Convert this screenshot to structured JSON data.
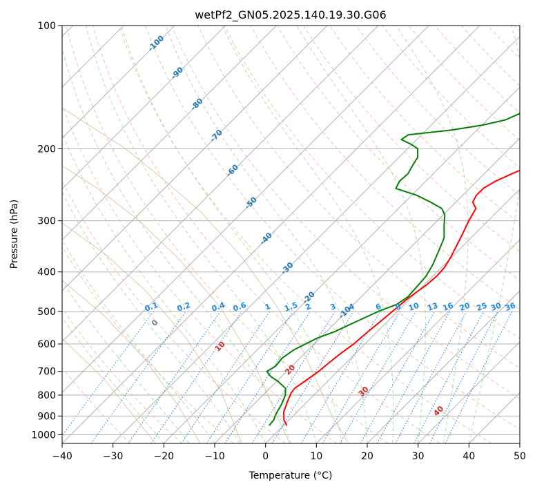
{
  "chart_data": {
    "type": "line",
    "title": "wetPf2_GN05.2025.140.19.30.G06",
    "xlabel": "Temperature (°C)",
    "ylabel": "Pressure (hPa)",
    "xlim": [
      -40,
      50
    ],
    "ylim": [
      1050,
      100
    ],
    "y_scale": "log",
    "grid": true,
    "x_ticks": [
      -40,
      -30,
      -20,
      -10,
      0,
      10,
      20,
      30,
      40,
      50
    ],
    "y_ticks": [
      1000,
      900,
      800,
      700,
      600,
      500,
      400,
      300,
      200,
      100
    ],
    "colors": {
      "temperature": "#ff0000",
      "dewpoint": "#008000",
      "dry_adiabat": "#f4a582",
      "moist_adiabat": "#a6d8a6",
      "mixing_ratio": "#1e88e5",
      "isotherm_label": "#1f77b4",
      "theta_label": "#d62728",
      "grid": "#b0b0b0",
      "isotherm": "#a0a0a0",
      "tan_curve": "#d2b48c"
    },
    "series": [
      {
        "key": "temperature",
        "points": [
          [
            0.7,
            950
          ],
          [
            -1.0,
            920
          ],
          [
            -2.6,
            880
          ],
          [
            -3.9,
            830
          ],
          [
            -4.9,
            790
          ],
          [
            -5.1,
            770
          ],
          [
            -4.5,
            740
          ],
          [
            -3.7,
            700
          ],
          [
            -3.4,
            670
          ],
          [
            -3.0,
            640
          ],
          [
            -2.2,
            600
          ],
          [
            -1.8,
            560
          ],
          [
            -1.4,
            530
          ],
          [
            -1.0,
            500
          ],
          [
            -0.6,
            470
          ],
          [
            -0.1,
            450
          ],
          [
            0.5,
            430
          ],
          [
            0.8,
            410
          ],
          [
            0.6,
            390
          ],
          [
            -0.1,
            370
          ],
          [
            -1.3,
            345
          ],
          [
            -2.6,
            320
          ],
          [
            -3.8,
            300
          ],
          [
            -4.8,
            280
          ],
          [
            -6.7,
            270
          ],
          [
            -7.3,
            260
          ],
          [
            -7.3,
            250
          ],
          [
            -6.3,
            240
          ],
          [
            -4.5,
            230
          ],
          [
            -2.3,
            220
          ],
          [
            0.0,
            210
          ],
          [
            3.2,
            200
          ],
          [
            6.1,
            190
          ],
          [
            8.3,
            180
          ],
          [
            10.2,
            170
          ],
          [
            12.4,
            160
          ],
          [
            14.7,
            150
          ],
          [
            16.3,
            140
          ],
          [
            17.8,
            130
          ],
          [
            19.2,
            120
          ],
          [
            20.6,
            110
          ],
          [
            21.7,
            104
          ],
          [
            23.0,
            100
          ]
        ]
      },
      {
        "key": "dewpoint",
        "points": [
          [
            -2.8,
            950
          ],
          [
            -3.0,
            920
          ],
          [
            -3.5,
            900
          ],
          [
            -3.9,
            880
          ],
          [
            -4.6,
            840
          ],
          [
            -5.6,
            800
          ],
          [
            -6.9,
            770
          ],
          [
            -9.8,
            740
          ],
          [
            -12.2,
            720
          ],
          [
            -13.9,
            700
          ],
          [
            -13.2,
            680
          ],
          [
            -13.5,
            650
          ],
          [
            -12.8,
            620
          ],
          [
            -10.5,
            580
          ],
          [
            -8.4,
            560
          ],
          [
            -6.2,
            530
          ],
          [
            -3.8,
            500
          ],
          [
            -1.5,
            480
          ],
          [
            -0.8,
            460
          ],
          [
            -1.1,
            430
          ],
          [
            -1.3,
            410
          ],
          [
            -2.2,
            385
          ],
          [
            -3.8,
            355
          ],
          [
            -5.3,
            330
          ],
          [
            -7.5,
            310
          ],
          [
            -9.7,
            290
          ],
          [
            -11.5,
            280
          ],
          [
            -15.0,
            270
          ],
          [
            -19.0,
            260
          ],
          [
            -24.5,
            250
          ],
          [
            -25.2,
            240
          ],
          [
            -25.0,
            230
          ],
          [
            -25.7,
            220
          ],
          [
            -26.3,
            210
          ],
          [
            -28.0,
            200
          ],
          [
            -30.2,
            195
          ],
          [
            -33.0,
            190
          ],
          [
            -32.6,
            185
          ],
          [
            -25.0,
            180
          ],
          [
            -19.8,
            175
          ],
          [
            -16.4,
            170
          ],
          [
            -13.7,
            160
          ],
          [
            -11.5,
            150
          ],
          [
            -9.4,
            140
          ],
          [
            -7.2,
            130
          ],
          [
            -5.0,
            120
          ],
          [
            -3.7,
            110
          ],
          [
            -2.8,
            105
          ],
          [
            -1.5,
            100
          ]
        ]
      }
    ],
    "isotherm_labels": [
      "-100",
      "-90",
      "-80",
      "-70",
      "-60",
      "-50",
      "-40",
      "-30",
      "-20",
      "-10"
    ],
    "mixing_ratio_labels": [
      "0.1",
      "0.2",
      "0.4",
      "0.6",
      "1",
      "1.5",
      "2",
      "3",
      "4",
      "6",
      "8",
      "10",
      "13",
      "16",
      "20",
      "25",
      "30",
      "36"
    ],
    "theta_labels": [
      "0",
      "10",
      "20",
      "30",
      "40"
    ]
  }
}
